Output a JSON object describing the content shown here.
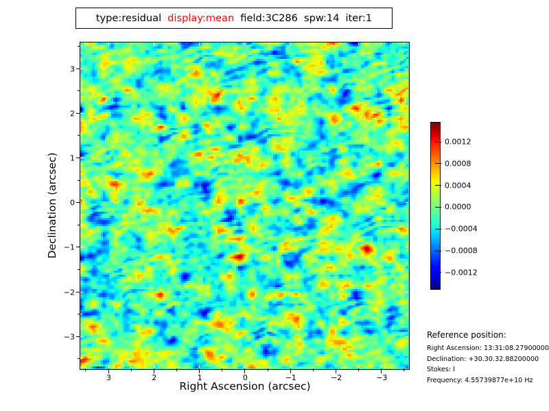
{
  "title": {
    "parts": [
      {
        "text": "type:residual",
        "color": "#000000"
      },
      {
        "text": "display:mean",
        "color": "#ff0000"
      },
      {
        "text": "field:3C286",
        "color": "#000000"
      },
      {
        "text": "spw:14",
        "color": "#000000"
      },
      {
        "text": "iter:1",
        "color": "#000000"
      }
    ]
  },
  "axes": {
    "xlabel": "Right Ascension (arcsec)",
    "ylabel": "Declination (arcsec)",
    "xtick_labels": [
      "3",
      "2",
      "1",
      "0",
      "−1",
      "−2",
      "−3"
    ],
    "ytick_labels": [
      "3",
      "2",
      "1",
      "0",
      "−1",
      "−2",
      "−3"
    ]
  },
  "colorbar": {
    "tick_labels": [
      "0.0012",
      "0.0008",
      "0.0004",
      "0.0000",
      "−0.0004",
      "−0.0008",
      "−0.0012"
    ],
    "colormap": "jet"
  },
  "reference": {
    "heading": "Reference position:",
    "lines": [
      "Right Ascension: 13:31:08.27900000",
      "Declination: +30.30.32.88200000",
      "Stokes: I",
      "Frequency: 4.55739877e+10 Hz"
    ]
  },
  "chart_data": {
    "type": "heatmap",
    "title": "type:residual display:mean field:3C286 spw:14 iter:1",
    "xlabel": "Right Ascension (arcsec)",
    "ylabel": "Declination (arcsec)",
    "xticks": [
      3,
      2,
      1,
      0,
      -1,
      -2,
      -3
    ],
    "yticks": [
      3,
      2,
      1,
      0,
      -1,
      -2,
      -3
    ],
    "xlim": [
      3.6,
      -3.6
    ],
    "ylim": [
      -3.77,
      3.58
    ],
    "minor_tick_interval": 0.5,
    "grid": false,
    "colormap": "jet",
    "colorbar_position": "right",
    "colorbar_ticks": [
      0.0012,
      0.0008,
      0.0004,
      0.0,
      -0.0004,
      -0.0008,
      -0.0012
    ],
    "value_range": [
      -0.0015,
      0.0015
    ],
    "data_description": "Spatially correlated random residual noise with no source structure; background near 0.0000 (green-cyan), isolated positive peaks to ~+0.0015 (red) and negative troughs to ~−0.0015 (dark blue), blob correlation length ~10 px with faint diagonal fringe striping."
  }
}
